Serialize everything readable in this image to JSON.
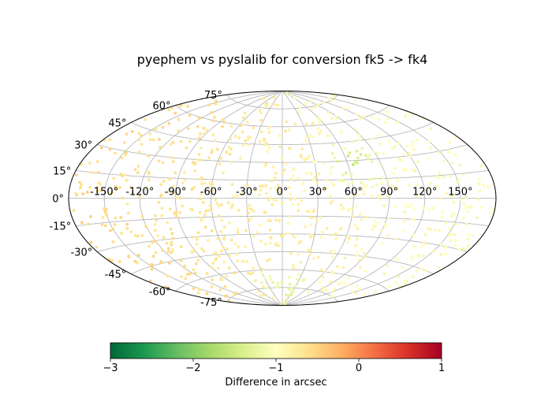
{
  "chart_data": {
    "type": "scatter",
    "projection": "aitoff",
    "title": "pyephem vs pyslalib for conversion fk5 -> fk4",
    "grid": true,
    "lon_tick_labels": [
      "-150°",
      "-120°",
      "-90°",
      "-60°",
      "-30°",
      "0°",
      "30°",
      "60°",
      "90°",
      "120°",
      "150°"
    ],
    "lon_tick_values": [
      -150,
      -120,
      -90,
      -60,
      -30,
      0,
      30,
      60,
      90,
      120,
      150
    ],
    "lat_tick_labels": [
      "-75°",
      "-60°",
      "-45°",
      "-30°",
      "-15°",
      "0°",
      "15°",
      "30°",
      "45°",
      "60°",
      "75°"
    ],
    "lat_tick_values": [
      -75,
      -60,
      -45,
      -30,
      -15,
      0,
      15,
      30,
      45,
      60,
      75
    ],
    "point_count": 900,
    "value_pattern": "difference varies roughly from about -0.6 arcsec (orange) in the western half to about -1.1 arcsec (pale yellow) in the eastern half, reaching about -1.6 arcsec (light green) near longitude 65°, latitude 28°",
    "colorbar": {
      "colormap": "RdYlGn_r",
      "label": "Difference in arcsec",
      "vmin": -3,
      "vmax": 1,
      "tick_labels": [
        "−3",
        "−2",
        "−1",
        "0",
        "1"
      ],
      "tick_values": [
        -3,
        -2,
        -1,
        0,
        1
      ],
      "colors": [
        "#006837",
        "#1a9850",
        "#66bd63",
        "#a6d96a",
        "#d9ef8b",
        "#ffffbf",
        "#fee08b",
        "#fdae61",
        "#f46d43",
        "#d73027",
        "#a50026"
      ]
    }
  }
}
